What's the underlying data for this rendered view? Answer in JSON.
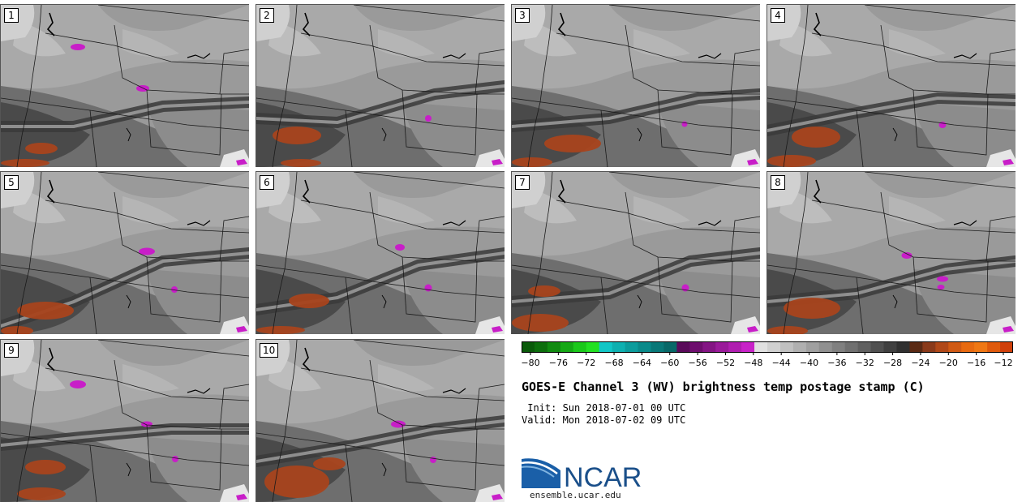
{
  "panels": [
    {
      "label": "1"
    },
    {
      "label": "2"
    },
    {
      "label": "3"
    },
    {
      "label": "4"
    },
    {
      "label": "5"
    },
    {
      "label": "6"
    },
    {
      "label": "7"
    },
    {
      "label": "8"
    },
    {
      "label": "9"
    },
    {
      "label": "10"
    }
  ],
  "colorbar": {
    "tick_labels": [
      "−80",
      "−76",
      "−72",
      "−68",
      "−64",
      "−60",
      "−56",
      "−52",
      "−48",
      "−44",
      "−40",
      "−36",
      "−32",
      "−28",
      "−24",
      "−20",
      "−16",
      "−12"
    ],
    "colors": [
      "#0a5a0a",
      "#0d6e0d",
      "#108a10",
      "#14a814",
      "#1ac81a",
      "#22e022",
      "#11c6c6",
      "#0eb0b0",
      "#0c9c9c",
      "#0a8a8a",
      "#097878",
      "#086868",
      "#5a0a5a",
      "#6e0e6e",
      "#841484",
      "#9a1a9a",
      "#b01eb0",
      "#c822c8",
      "#e0e0e0",
      "#d0d0d0",
      "#c0c0c0",
      "#b0b0b0",
      "#a0a0a0",
      "#909090",
      "#808080",
      "#707070",
      "#606060",
      "#505050",
      "#404040",
      "#303030",
      "#5a2a14",
      "#8a3a1a",
      "#b04818",
      "#d05a14",
      "#e86a10",
      "#f07814",
      "#e05a0c",
      "#d0400a"
    ]
  },
  "title": "GOES-E Channel 3 (WV) brightness temp postage stamp (C)",
  "init": " Init: Sun 2018-07-01 00 UTC",
  "valid": "Valid: Mon 2018-07-02 09 UTC",
  "logo": {
    "text": "NCAR",
    "url": "ensemble.ucar.edu"
  }
}
